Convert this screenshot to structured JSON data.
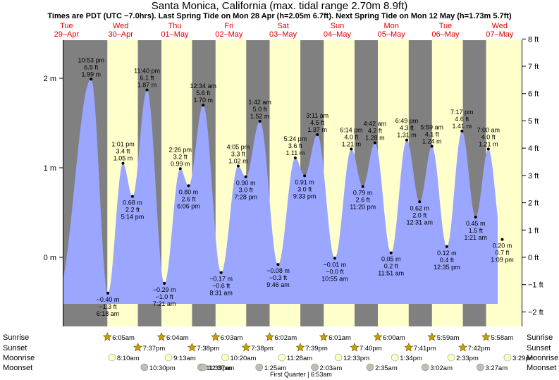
{
  "title": "Santa Monica, California (max. tidal range 2.70m 8.9ft)",
  "subtitle": "Times are PDT (UTC −7.0hrs). Last Spring Tide on Mon 28 Apr (h=2.05m 6.7ft). Next Spring Tide on Mon 12 May (h=1.73m 5.7ft)",
  "days": [
    {
      "dow": "Tue",
      "date": "29–Apr"
    },
    {
      "dow": "Wed",
      "date": "30–Apr"
    },
    {
      "dow": "Thu",
      "date": "01–May"
    },
    {
      "dow": "Fri",
      "date": "02–May"
    },
    {
      "dow": "Sat",
      "date": "03–May"
    },
    {
      "dow": "Sun",
      "date": "04–May"
    },
    {
      "dow": "Mon",
      "date": "05–May"
    },
    {
      "dow": "Tue",
      "date": "06–May"
    },
    {
      "dow": "Wed",
      "date": "07–May"
    }
  ],
  "colors": {
    "night": "#808080",
    "day": "#ffffcc",
    "tide": "#9aa6ff",
    "sun": "#c8a000",
    "moon_rise": "#ffffc0",
    "moon_set": "#c0c0b0"
  },
  "rows": {
    "sunrise": {
      "label": "Sunrise",
      "times": [
        "6:05am",
        "6:04am",
        "6:03am",
        "6:02am",
        "6:01am",
        "6:00am",
        "5:59am",
        "5:58am"
      ]
    },
    "sunset": {
      "label": "Sunset",
      "times": [
        "7:37pm",
        "7:38pm",
        "7:38pm",
        "7:39pm",
        "7:40pm",
        "7:41pm",
        "7:42pm"
      ]
    },
    "moonrise": {
      "label": "Moonrise",
      "times": [
        "8:10am",
        "9:13am",
        "10:20am",
        "11:28am",
        "12:33pm",
        "1:34pm",
        "2:33pm",
        "3:29pm"
      ]
    },
    "moonset": {
      "label": "Moonset",
      "times": [
        "10:30pm",
        "11:39pm",
        "12:37am",
        "1:25am",
        "2:03am",
        "2:35am",
        "3:02am",
        "3:27am"
      ]
    }
  },
  "moon_phase": "First Quarter | 6:53am",
  "chart_data": {
    "type": "area",
    "title": "Santa Monica, California (max. tidal range 2.70m 8.9ft)",
    "xlabel": "",
    "ylabel": "",
    "y_left_unit": "m",
    "y_right_unit": "ft",
    "y_left_ticks": [
      {
        "v": 0,
        "label": "0 m"
      },
      {
        "v": 1,
        "label": "1 m"
      },
      {
        "v": 2,
        "label": "2 m"
      }
    ],
    "y_right_ticks": [
      {
        "v": -2,
        "label": "−2 ft"
      },
      {
        "v": -1,
        "label": "−1 ft"
      },
      {
        "v": 0,
        "label": "0 ft"
      },
      {
        "v": 1,
        "label": "1 ft"
      },
      {
        "v": 2,
        "label": "2 ft"
      },
      {
        "v": 3,
        "label": "3 ft"
      },
      {
        "v": 4,
        "label": "4 ft"
      },
      {
        "v": 5,
        "label": "5 ft"
      },
      {
        "v": 6,
        "label": "6 ft"
      },
      {
        "v": 7,
        "label": "7 ft"
      },
      {
        "v": 8,
        "label": "8 ft"
      }
    ],
    "ylim_m": [
      -0.6,
      2.45
    ],
    "grid": false,
    "tides": [
      {
        "day": 0,
        "time": "10:53 pm",
        "m": 1.99,
        "ft": "6.5 ft",
        "mlabel": "1.99 m",
        "high": true
      },
      {
        "day": 1,
        "time": "6:18 am",
        "m": -0.4,
        "ft": "−1.3 ft",
        "mlabel": "−0.40 m",
        "high": false
      },
      {
        "day": 1,
        "time": "1:01 pm",
        "m": 1.05,
        "ft": "3.4 ft",
        "mlabel": "1.05 m",
        "high": true
      },
      {
        "day": 1,
        "time": "5:14 pm",
        "m": 0.68,
        "ft": "2.2 ft",
        "mlabel": "0.68 m",
        "high": false
      },
      {
        "day": 1,
        "time": "11:40 pm",
        "m": 1.87,
        "ft": "6.1 ft",
        "mlabel": "1.87 m",
        "high": true
      },
      {
        "day": 2,
        "time": "7:21 am",
        "m": -0.29,
        "ft": "−1.0 ft",
        "mlabel": "−0.29 m",
        "high": false
      },
      {
        "day": 2,
        "time": "2:26 pm",
        "m": 0.99,
        "ft": "3.2 ft",
        "mlabel": "0.99 m",
        "high": true
      },
      {
        "day": 2,
        "time": "6:06 pm",
        "m": 0.8,
        "ft": "2.6 ft",
        "mlabel": "0.80 m",
        "high": false
      },
      {
        "day": 3,
        "time": "12:34 am",
        "m": 1.7,
        "ft": "5.6 ft",
        "mlabel": "1.70 m",
        "high": true
      },
      {
        "day": 3,
        "time": "8:31 am",
        "m": -0.17,
        "ft": "−0.6 ft",
        "mlabel": "−0.17 m",
        "high": false
      },
      {
        "day": 3,
        "time": "4:05 pm",
        "m": 1.02,
        "ft": "3.3 ft",
        "mlabel": "1.02 m",
        "high": true
      },
      {
        "day": 3,
        "time": "7:28 pm",
        "m": 0.9,
        "ft": "3.0 ft",
        "mlabel": "0.90 m",
        "high": false
      },
      {
        "day": 4,
        "time": "1:42 am",
        "m": 1.52,
        "ft": "5.0 ft",
        "mlabel": "1.52 m",
        "high": true
      },
      {
        "day": 4,
        "time": "9:46 am",
        "m": -0.08,
        "ft": "−0.3 ft",
        "mlabel": "−0.08 m",
        "high": false
      },
      {
        "day": 4,
        "time": "5:24 pm",
        "m": 1.11,
        "ft": "3.6 ft",
        "mlabel": "1.11 m",
        "high": true
      },
      {
        "day": 4,
        "time": "9:33 pm",
        "m": 0.91,
        "ft": "3.0 ft",
        "mlabel": "0.91 m",
        "high": false
      },
      {
        "day": 5,
        "time": "3:11 am",
        "m": 1.37,
        "ft": "4.5 ft",
        "mlabel": "1.37 m",
        "high": true
      },
      {
        "day": 5,
        "time": "10:55 am",
        "m": -0.01,
        "ft": "−0.0 ft",
        "mlabel": "−0.01 m",
        "high": false
      },
      {
        "day": 5,
        "time": "6:14 pm",
        "m": 1.21,
        "ft": "4.0 ft",
        "mlabel": "1.21 m",
        "high": true
      },
      {
        "day": 5,
        "time": "11:20 pm",
        "m": 0.79,
        "ft": "2.6 ft",
        "mlabel": "0.79 m",
        "high": false
      },
      {
        "day": 6,
        "time": "4:42 am",
        "m": 1.28,
        "ft": "4.2 ft",
        "mlabel": "1.28 m",
        "high": true
      },
      {
        "day": 6,
        "time": "11:51 am",
        "m": 0.05,
        "ft": "0.2 ft",
        "mlabel": "0.05 m",
        "high": false
      },
      {
        "day": 6,
        "time": "6:49 pm",
        "m": 1.31,
        "ft": "4.3 ft",
        "mlabel": "1.31 m",
        "high": true
      },
      {
        "day": 7,
        "time": "12:31 am",
        "m": 0.62,
        "ft": "2.0 ft",
        "mlabel": "0.62 m",
        "high": false
      },
      {
        "day": 7,
        "time": "5:59 am",
        "m": 1.24,
        "ft": "4.1 ft",
        "mlabel": "1.24 m",
        "high": true
      },
      {
        "day": 7,
        "time": "12:35 pm",
        "m": 0.12,
        "ft": "0.4 ft",
        "mlabel": "0.12 m",
        "high": false
      },
      {
        "day": 7,
        "time": "7:17 pm",
        "m": 1.41,
        "ft": "4.6 ft",
        "mlabel": "1.41 m",
        "high": true
      },
      {
        "day": 8,
        "time": "1:21 am",
        "m": 0.45,
        "ft": "1.5 ft",
        "mlabel": "0.45 m",
        "high": false
      },
      {
        "day": 8,
        "time": "7:00 am",
        "m": 1.21,
        "ft": "4.0 ft",
        "mlabel": "1.21 m",
        "high": true
      },
      {
        "day": 8,
        "time": "1:09 pm",
        "m": 0.2,
        "ft": "0.7 ft",
        "mlabel": "0.20 m",
        "high": false
      }
    ]
  }
}
